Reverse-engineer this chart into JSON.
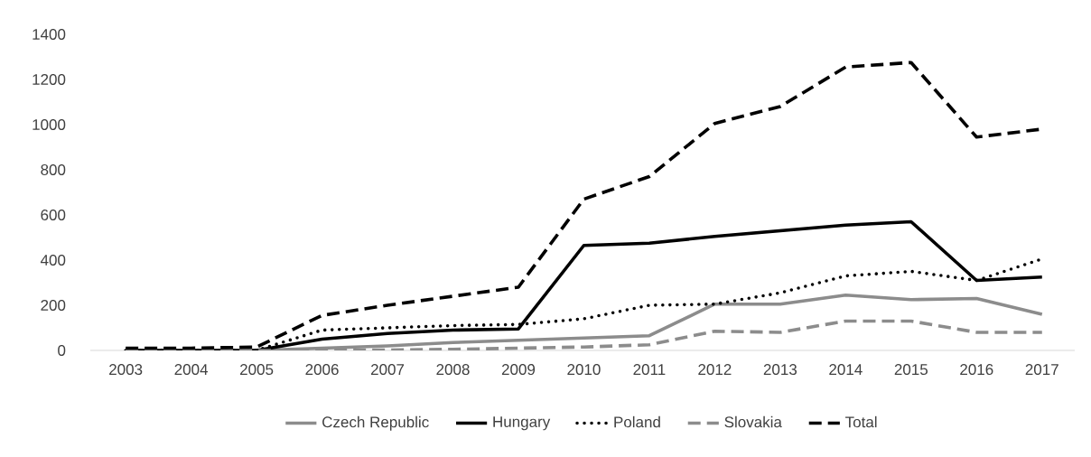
{
  "chart_data": {
    "type": "line",
    "categories": [
      "2003",
      "2004",
      "2005",
      "2006",
      "2007",
      "2008",
      "2009",
      "2010",
      "2011",
      "2012",
      "2013",
      "2014",
      "2015",
      "2016",
      "2017"
    ],
    "series": [
      {
        "name": "Czech Republic",
        "color": "#8c8c8c",
        "line_style": "solid",
        "values": [
          0,
          0,
          0,
          10,
          20,
          35,
          45,
          55,
          65,
          205,
          205,
          245,
          225,
          230,
          160
        ]
      },
      {
        "name": "Hungary",
        "color": "#000000",
        "line_style": "solid",
        "values": [
          0,
          0,
          0,
          50,
          75,
          90,
          95,
          465,
          475,
          505,
          530,
          555,
          570,
          310,
          325
        ]
      },
      {
        "name": "Poland",
        "color": "#000000",
        "line_style": "dotted",
        "values": [
          0,
          0,
          0,
          90,
          100,
          110,
          115,
          140,
          200,
          205,
          255,
          330,
          350,
          310,
          405
        ]
      },
      {
        "name": "Slovakia",
        "color": "#8c8c8c",
        "line_style": "dashed",
        "values": [
          0,
          0,
          0,
          0,
          2,
          5,
          10,
          15,
          25,
          85,
          80,
          130,
          130,
          80,
          80
        ]
      },
      {
        "name": "Total",
        "color": "#000000",
        "line_style": "dashed",
        "values": [
          10,
          10,
          15,
          155,
          200,
          240,
          280,
          670,
          770,
          1005,
          1080,
          1255,
          1275,
          945,
          980
        ]
      }
    ],
    "ylim": [
      0,
      1400
    ],
    "yticks": [
      0,
      200,
      400,
      600,
      800,
      1000,
      1200,
      1400
    ],
    "grid": false,
    "legend": "bottom"
  }
}
